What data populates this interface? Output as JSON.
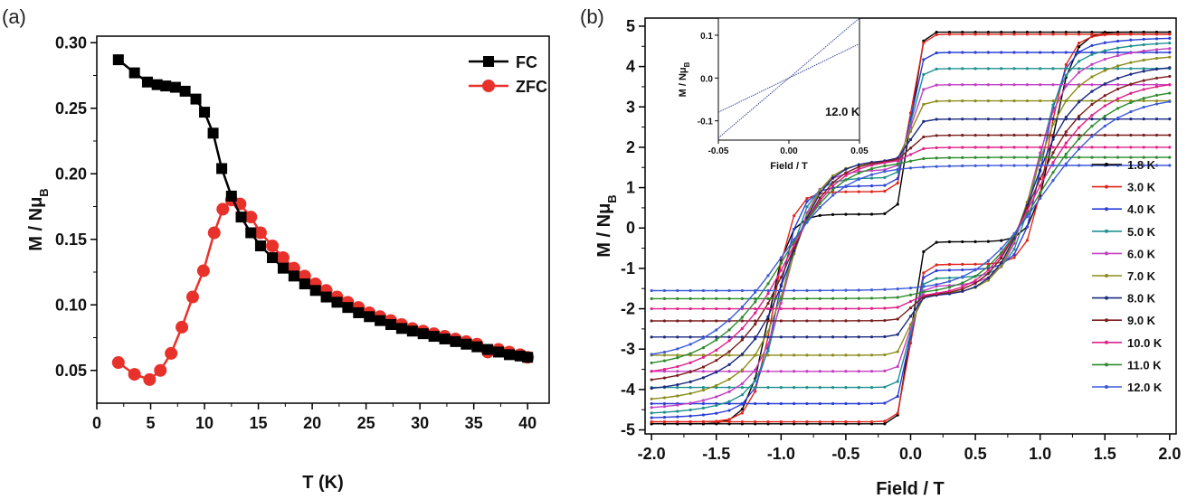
{
  "chart_data": [
    {
      "type": "line",
      "panel_label": "(a)",
      "xlabel": "T (K)",
      "ylabel_main": "M / Nμ",
      "ylabel_sub": "B",
      "xlim": [
        0,
        42
      ],
      "ylim": [
        0.025,
        0.305
      ],
      "xticks": [
        "0",
        "5",
        "10",
        "15",
        "20",
        "25",
        "30",
        "35",
        "40"
      ],
      "yticks": [
        "0.05",
        "0.10",
        "0.15",
        "0.20",
        "0.25",
        "0.30"
      ],
      "legend_position": "top-right",
      "series": [
        {
          "name": "FC",
          "color": "#000000",
          "marker": "square",
          "x": [
            2.0,
            3.5,
            4.7,
            5.6,
            6.4,
            7.3,
            8.2,
            9.2,
            10.0,
            10.8,
            11.6,
            12.5,
            13.4,
            14.3,
            15.2,
            16.3,
            17.3,
            18.3,
            19.3,
            20.3,
            21.3,
            22.3,
            23.3,
            24.3,
            25.3,
            26.3,
            27.3,
            28.3,
            29.3,
            30.3,
            31.3,
            32.3,
            33.3,
            34.3,
            35.3,
            36.3,
            37.3,
            38.3,
            39.3,
            40.0
          ],
          "y": [
            0.287,
            0.277,
            0.27,
            0.268,
            0.267,
            0.266,
            0.263,
            0.257,
            0.247,
            0.231,
            0.204,
            0.183,
            0.167,
            0.155,
            0.145,
            0.136,
            0.128,
            0.122,
            0.116,
            0.111,
            0.106,
            0.102,
            0.098,
            0.094,
            0.091,
            0.088,
            0.085,
            0.082,
            0.08,
            0.078,
            0.076,
            0.074,
            0.072,
            0.07,
            0.068,
            0.066,
            0.064,
            0.062,
            0.061,
            0.06
          ]
        },
        {
          "name": "ZFC",
          "color": "#e8312a",
          "marker": "circle",
          "x": [
            2.0,
            3.5,
            4.9,
            5.9,
            6.9,
            7.9,
            8.9,
            9.9,
            10.9,
            11.7,
            12.5,
            13.3,
            14.3,
            15.2,
            16.3,
            17.3,
            18.3,
            19.3,
            20.3,
            21.3,
            22.3,
            23.3,
            24.3,
            25.3,
            26.3,
            27.3,
            28.3,
            29.3,
            30.3,
            31.3,
            32.3,
            33.3,
            34.3,
            35.3,
            36.3,
            37.3,
            38.3,
            39.3,
            40.0
          ],
          "y": [
            0.056,
            0.047,
            0.043,
            0.05,
            0.063,
            0.083,
            0.106,
            0.126,
            0.155,
            0.173,
            0.18,
            0.177,
            0.167,
            0.155,
            0.145,
            0.136,
            0.128,
            0.122,
            0.116,
            0.111,
            0.106,
            0.102,
            0.098,
            0.094,
            0.091,
            0.088,
            0.085,
            0.082,
            0.08,
            0.078,
            0.076,
            0.074,
            0.072,
            0.07,
            0.064,
            0.066,
            0.064,
            0.062,
            0.06
          ]
        }
      ]
    },
    {
      "type": "line",
      "panel_label": "(b)",
      "xlabel": "Field / T",
      "ylabel_main": "M / Nμ",
      "ylabel_sub": "B",
      "xlim": [
        -2.05,
        2.05
      ],
      "ylim": [
        -5.1,
        5.2
      ],
      "xticks": [
        "-2.0",
        "-1.5",
        "-1.0",
        "-0.5",
        "0.0",
        "0.5",
        "1.0",
        "1.5",
        "2.0"
      ],
      "yticks": [
        "-5",
        "-4",
        "-3",
        "-2",
        "-1",
        "0",
        "1",
        "2",
        "3",
        "4",
        "5"
      ],
      "legend_position": "right",
      "series": [
        {
          "name": "1.8 K",
          "color": "#000000",
          "Ms": 4.88,
          "M2": 4.85,
          "Hc": 1.1,
          "Mplat": 2.27,
          "Hs": 0.07,
          "k": 4.0
        },
        {
          "name": "3.0 K",
          "color": "#e0261c",
          "Ms": 4.8,
          "M2": 4.8,
          "Hc": 1.06,
          "Mplat": 1.95,
          "Hs": 0.07,
          "k": 4.2
        },
        {
          "name": "4.0 K",
          "color": "#2b3fd6",
          "Ms": 4.35,
          "M2": 4.72,
          "Hc": 1.02,
          "Mplat": 1.65,
          "Hs": 0.07,
          "k": 3.8
        },
        {
          "name": "5.0 K",
          "color": "#1f8f8f",
          "Ms": 3.95,
          "M2": 4.62,
          "Hc": 0.98,
          "Mplat": 1.35,
          "Hs": 0.07,
          "k": 3.4
        },
        {
          "name": "6.0 K",
          "color": "#c33fc1",
          "Ms": 3.55,
          "M2": 4.5,
          "Hc": 0.95,
          "Mplat": 1.05,
          "Hs": 0.07,
          "k": 3.0
        },
        {
          "name": "7.0 K",
          "color": "#8c8c1a",
          "Ms": 3.15,
          "M2": 4.3,
          "Hc": 0.93,
          "Mplat": 0.75,
          "Hs": 0.07,
          "k": 2.6
        },
        {
          "name": "8.0 K",
          "color": "#1c2a80",
          "Ms": 2.7,
          "M2": 4.05,
          "Hc": 0.92,
          "Mplat": 0.5,
          "Hs": 0.07,
          "k": 2.3
        },
        {
          "name": "9.0 K",
          "color": "#7a1e1e",
          "Ms": 2.3,
          "M2": 3.85,
          "Hc": 0.91,
          "Mplat": 0.3,
          "Hs": 0.07,
          "k": 2.0
        },
        {
          "name": "10.0 K",
          "color": "#e0208a",
          "Ms": 2.0,
          "M2": 3.65,
          "Hc": 0.9,
          "Mplat": 0.15,
          "Hs": 0.07,
          "k": 1.8
        },
        {
          "name": "11.0 K",
          "color": "#2e8b2e",
          "Ms": 1.75,
          "M2": 3.45,
          "Hc": 0.9,
          "Mplat": 0.05,
          "Hs": 0.07,
          "k": 1.6
        },
        {
          "name": "12.0 K",
          "color": "#3d5ad8",
          "Ms": 1.55,
          "M2": 3.25,
          "Hc": 0.9,
          "Mplat": 0.0,
          "Hs": 0.07,
          "k": 1.4
        }
      ],
      "inset": {
        "xlabel": "Field / T",
        "ylabel_main": "M / Nμ",
        "ylabel_sub": "B",
        "xlim": [
          -0.05,
          0.05
        ],
        "ylim": [
          -0.145,
          0.14
        ],
        "xticks": [
          "-0.05",
          "0.00",
          "0.05"
        ],
        "yticks": [
          "-0.1",
          "0.0",
          "0.1"
        ],
        "annotation": "12.0 K",
        "series": [
          {
            "name": "12.0 K up",
            "color": "#3d4a9a",
            "x": [
              -0.05,
              0.05
            ],
            "y": [
              -0.14,
              0.14
            ]
          },
          {
            "name": "12.0 K down",
            "color": "#3d4a9a",
            "x": [
              -0.05,
              0.05
            ],
            "y": [
              -0.08,
              0.08
            ]
          }
        ]
      }
    }
  ]
}
